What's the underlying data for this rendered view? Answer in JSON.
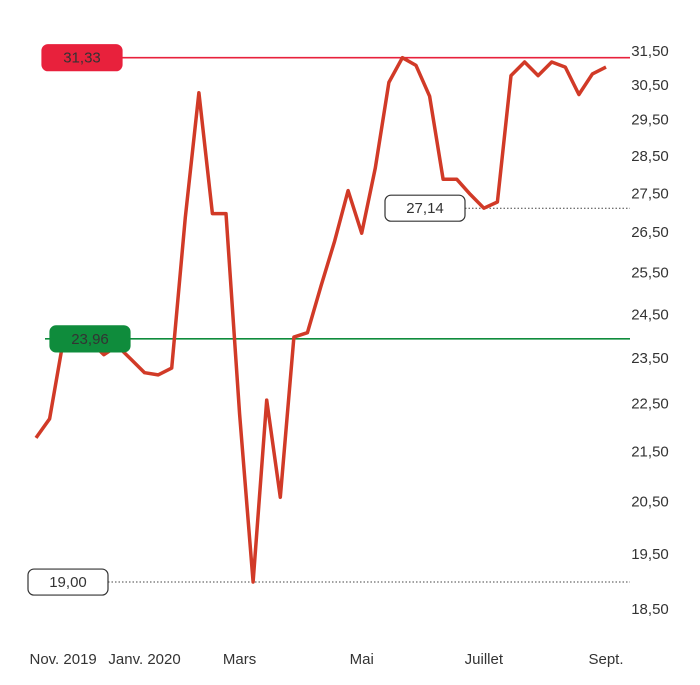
{
  "chart_data": {
    "type": "line",
    "categories": [
      null,
      null,
      "Nov. 2019",
      null,
      null,
      null,
      null,
      null,
      "Janv. 2020",
      null,
      null,
      null,
      null,
      null,
      null,
      "Mars",
      null,
      null,
      null,
      null,
      null,
      null,
      null,
      null,
      "Mai",
      null,
      null,
      null,
      null,
      null,
      null,
      null,
      null,
      "Juillet",
      null,
      null,
      null,
      null,
      null,
      null,
      null,
      null,
      "Sept."
    ],
    "series": [
      {
        "color": "#d13a27",
        "values": [
          21.8,
          22.2,
          23.9,
          24.0,
          23.9,
          23.6,
          23.8,
          23.5,
          23.2,
          23.15,
          23.3,
          26.9,
          30.3,
          27.0,
          27.0,
          22.3,
          19.0,
          22.6,
          20.6,
          24.0,
          24.1,
          25.2,
          26.3,
          27.6,
          26.5,
          28.2,
          30.6,
          31.33,
          31.1,
          30.2,
          27.9,
          27.9,
          27.5,
          27.14,
          27.3,
          30.8,
          31.2,
          30.8,
          31.2,
          31.05,
          30.25,
          30.85,
          31.05
        ]
      }
    ],
    "ylim": [
      18.5,
      31.5
    ],
    "log_scale": true,
    "yticks": [
      {
        "value": 31.5,
        "label": "31,50"
      },
      {
        "value": 30.5,
        "label": "30,50"
      },
      {
        "value": 29.5,
        "label": "29,50"
      },
      {
        "value": 28.5,
        "label": "28,50"
      },
      {
        "value": 27.5,
        "label": "27,50"
      },
      {
        "value": 26.5,
        "label": "26,50"
      },
      {
        "value": 25.5,
        "label": "25,50"
      },
      {
        "value": 24.5,
        "label": "24,50"
      },
      {
        "value": 23.5,
        "label": "23,50"
      },
      {
        "value": 22.5,
        "label": "22,50"
      },
      {
        "value": 21.5,
        "label": "21,50"
      },
      {
        "value": 20.5,
        "label": "20,50"
      },
      {
        "value": 19.5,
        "label": "19,50"
      },
      {
        "value": 18.5,
        "label": "18,50"
      }
    ],
    "reference_lines": [
      {
        "value": 31.33,
        "label": "31,33",
        "color": "#e8213c",
        "style": "solid"
      },
      {
        "value": 23.96,
        "label": "23,96",
        "color": "#0f8c3c",
        "style": "solid"
      },
      {
        "value": 27.14,
        "label": "27,14",
        "color": "#555555",
        "style": "dotted"
      },
      {
        "value": 19.0,
        "label": "19,00",
        "color": "#555555",
        "style": "dotted"
      }
    ]
  }
}
